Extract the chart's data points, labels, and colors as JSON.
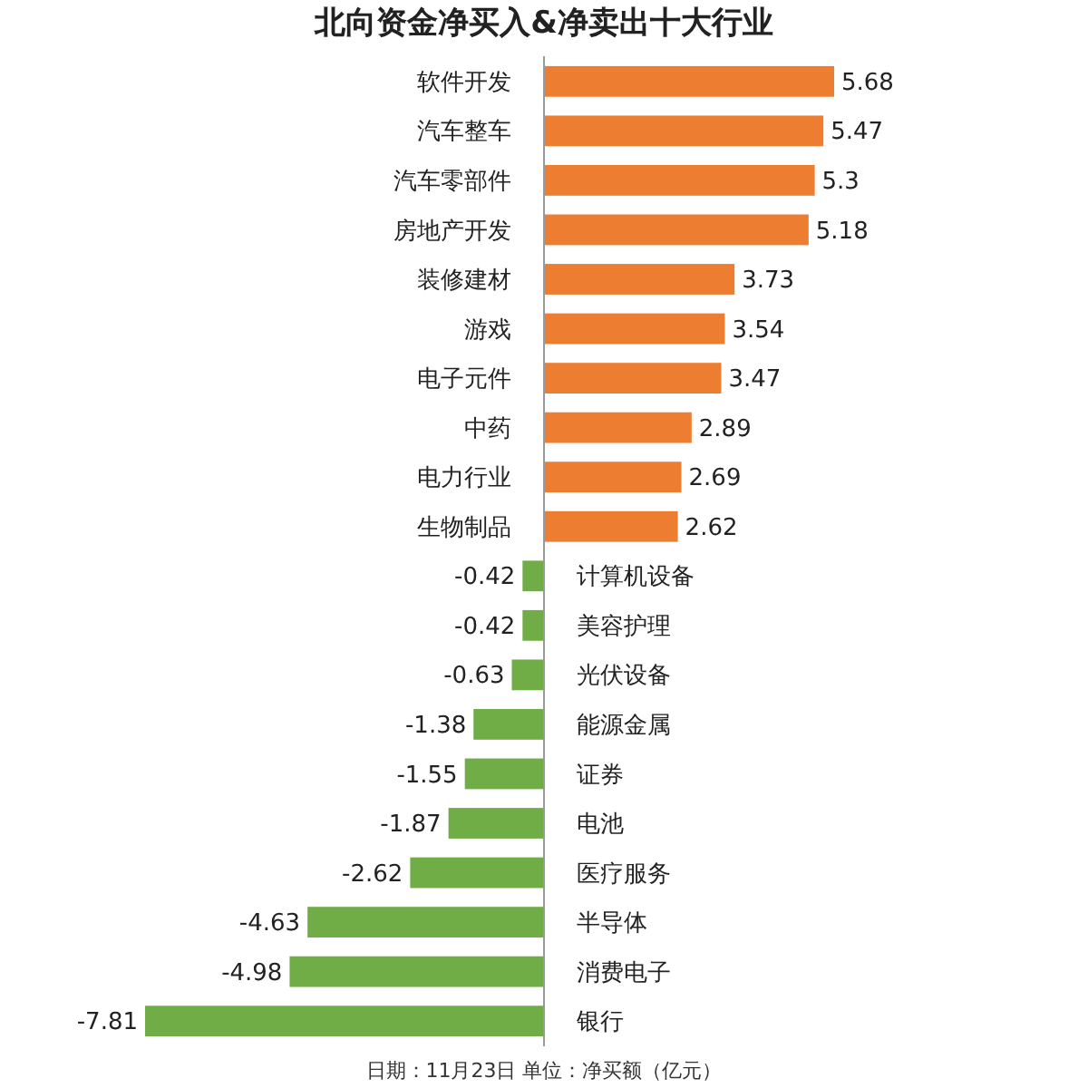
{
  "chart_data": {
    "type": "bar",
    "orientation": "horizontal",
    "title": "北向资金净买入&净卖出十大行业",
    "categories": [
      "软件开发",
      "汽车整车",
      "汽车零部件",
      "房地产开发",
      "装修建材",
      "游戏",
      "电子元件",
      "中药",
      "电力行业",
      "生物制品",
      "计算机设备",
      "美容护理",
      "光伏设备",
      "能源金属",
      "证券",
      "电池",
      "医疗服务",
      "半导体",
      "消费电子",
      "银行"
    ],
    "values": [
      5.68,
      5.47,
      5.3,
      5.18,
      3.73,
      3.54,
      3.47,
      2.89,
      2.69,
      2.62,
      -0.42,
      -0.42,
      -0.63,
      -1.38,
      -1.55,
      -1.87,
      -2.62,
      -4.63,
      -4.98,
      -7.81
    ],
    "colors": [
      "#ed7d31",
      "#ed7d31",
      "#ed7d31",
      "#ed7d31",
      "#ed7d31",
      "#ed7d31",
      "#ed7d31",
      "#ed7d31",
      "#ed7d31",
      "#ed7d31",
      "#70ad47",
      "#70ad47",
      "#70ad47",
      "#70ad47",
      "#70ad47",
      "#70ad47",
      "#70ad47",
      "#70ad47",
      "#70ad47",
      "#70ad47"
    ],
    "data_labels": true,
    "annotations": [
      "日期：11月23日 单位：净买额（亿元）"
    ]
  }
}
